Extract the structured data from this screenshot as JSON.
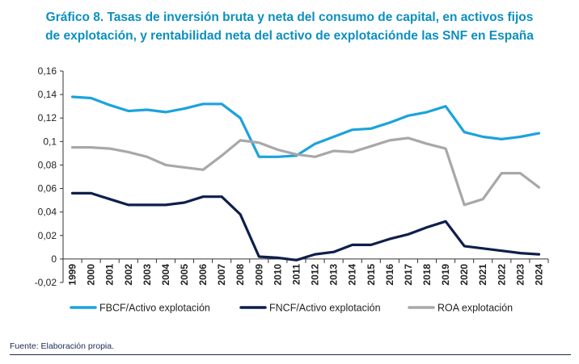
{
  "title_line1": "Gráfico 8. Tasas de inversión bruta y neta del consumo de capital, en activos fijos",
  "title_line2": "de explotación, y rentabilidad neta del activo de explotaciónde las SNF en España",
  "source": "Fuente: Elaboración propia.",
  "chart_data": {
    "type": "line",
    "x": [
      "1999",
      "2000",
      "2001",
      "2002",
      "2003",
      "2004",
      "2005",
      "2006",
      "2007",
      "2008",
      "2009",
      "2010",
      "2011",
      "2012",
      "2013",
      "2014",
      "2015",
      "2016",
      "2017",
      "2018",
      "2019",
      "2020",
      "2021",
      "2022",
      "2023",
      "2024"
    ],
    "y_ticks": [
      "0,16",
      "0,14",
      "0,12",
      "0,1",
      "0,08",
      "0,06",
      "0,04",
      "0,02",
      "0",
      "-0,02"
    ],
    "ylim": [
      -0.02,
      0.16
    ],
    "grid": false,
    "legend_position": "bottom",
    "series": [
      {
        "name": "FBCF/Activo explotación",
        "color": "#1ba3dc",
        "values": [
          0.138,
          0.137,
          0.131,
          0.126,
          0.127,
          0.125,
          0.128,
          0.132,
          0.132,
          0.12,
          0.087,
          0.087,
          0.088,
          0.098,
          0.104,
          0.11,
          0.111,
          0.116,
          0.122,
          0.125,
          0.13,
          0.108,
          0.104,
          0.102,
          0.104,
          0.107
        ]
      },
      {
        "name": "FNCF/Activo explotación",
        "color": "#0f1f4b",
        "values": [
          0.056,
          0.056,
          0.051,
          0.046,
          0.046,
          0.046,
          0.048,
          0.053,
          0.053,
          0.038,
          0.002,
          0.001,
          -0.001,
          0.004,
          0.006,
          0.012,
          0.012,
          0.017,
          0.021,
          0.027,
          0.032,
          0.011,
          0.009,
          0.007,
          0.005,
          0.004
        ]
      },
      {
        "name": "ROA explotación",
        "color": "#a8a8a8",
        "values": [
          0.095,
          0.095,
          0.094,
          0.091,
          0.087,
          0.08,
          0.078,
          0.076,
          0.088,
          0.101,
          0.099,
          0.093,
          0.089,
          0.087,
          0.092,
          0.091,
          0.096,
          0.101,
          0.103,
          0.098,
          0.094,
          0.046,
          0.051,
          0.073,
          0.073,
          0.061
        ]
      }
    ]
  }
}
